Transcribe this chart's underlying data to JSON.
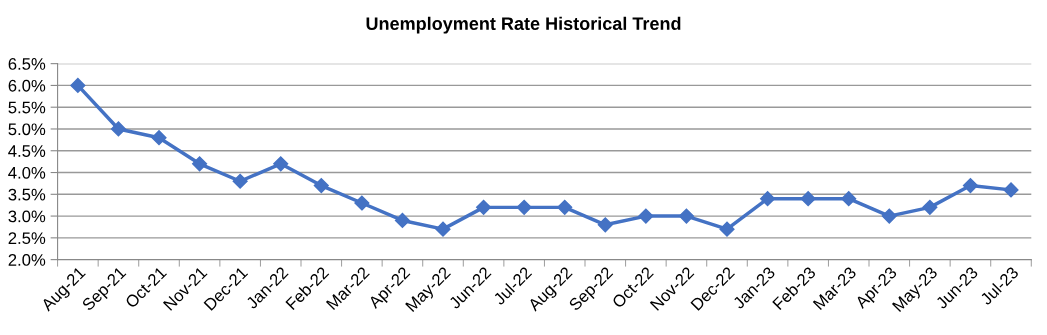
{
  "chart_data": {
    "type": "line",
    "title": "Unemployment Rate Historical Trend",
    "categories": [
      "Aug-21",
      "Sep-21",
      "Oct-21",
      "Nov-21",
      "Dec-21",
      "Jan-22",
      "Feb-22",
      "Mar-22",
      "Apr-22",
      "May-22",
      "Jun-22",
      "Jul-22",
      "Aug-22",
      "Sep-22",
      "Oct-22",
      "Nov-22",
      "Dec-22",
      "Jan-23",
      "Feb-23",
      "Mar-23",
      "Apr-23",
      "May-23",
      "Jun-23",
      "Jul-23"
    ],
    "series": [
      {
        "color": "#4472c4",
        "values": [
          6.0,
          5.0,
          4.8,
          4.2,
          3.8,
          4.2,
          3.7,
          3.3,
          2.9,
          2.7,
          3.2,
          3.2,
          3.2,
          2.8,
          3.0,
          3.0,
          2.7,
          3.4,
          3.4,
          3.4,
          3.0,
          3.2,
          3.7,
          3.6
        ]
      }
    ],
    "ylim": [
      2.0,
      6.5
    ],
    "yticks": [
      {
        "value": 2.0,
        "label": "2.0%"
      },
      {
        "value": 2.5,
        "label": "2.5%"
      },
      {
        "value": 3.0,
        "label": "3.0%"
      },
      {
        "value": 3.5,
        "label": "3.5%"
      },
      {
        "value": 4.0,
        "label": "4.0%"
      },
      {
        "value": 4.5,
        "label": "4.5%"
      },
      {
        "value": 5.0,
        "label": "5.0%"
      },
      {
        "value": 5.5,
        "label": "5.5%"
      },
      {
        "value": 6.0,
        "label": "6.0%"
      },
      {
        "value": 6.5,
        "label": "6.5%"
      }
    ],
    "grid": "y",
    "marker": "diamond",
    "line_style": "solid"
  }
}
